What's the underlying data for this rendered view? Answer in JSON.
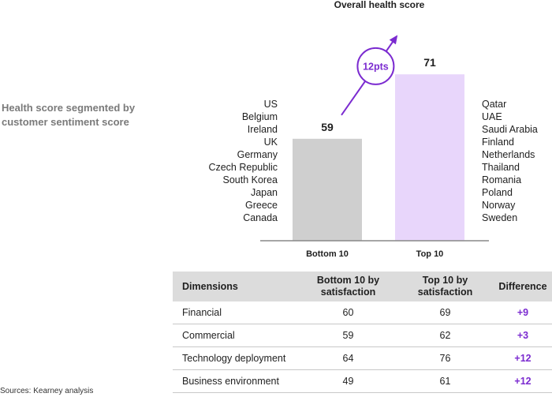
{
  "chart_data": {
    "type": "bar",
    "title": "Overall health score",
    "categories": [
      "Bottom 10",
      "Top 10"
    ],
    "values": [
      59,
      71
    ],
    "ylim": [
      40,
      75
    ],
    "annotation": "12pts",
    "colors": {
      "bottom": "#cfcfcf",
      "top": "#e8d6fb",
      "accent": "#7b2bd0",
      "axis": "#888888"
    },
    "side_label": "Health score segmented by customer sentiment score",
    "bottom_countries": [
      "US",
      "Belgium",
      "Ireland",
      "UK",
      "Germany",
      "Czech Republic",
      "South Korea",
      "Japan",
      "Greece",
      "Canada"
    ],
    "top_countries": [
      "Qatar",
      "UAE",
      "Saudi Arabia",
      "Finland",
      "Netherlands",
      "Thailand",
      "Romania",
      "Poland",
      "Norway",
      "Sweden"
    ]
  },
  "table": {
    "headers": {
      "dimensions": "Dimensions",
      "bottom_line1": "Bottom 10 by",
      "bottom_line2": "satisfaction",
      "top_line1": "Top 10 by",
      "top_line2": "satisfaction",
      "difference": "Difference"
    },
    "rows": [
      {
        "dimension": "Financial",
        "bottom": "60",
        "top": "69",
        "difference": "+9"
      },
      {
        "dimension": "Commercial",
        "bottom": "59",
        "top": "62",
        "difference": "+3"
      },
      {
        "dimension": "Technology deployment",
        "bottom": "64",
        "top": "76",
        "difference": "+12"
      },
      {
        "dimension": "Business environment",
        "bottom": "49",
        "top": "61",
        "difference": "+12"
      }
    ]
  },
  "source": "Sources: Kearney analysis"
}
